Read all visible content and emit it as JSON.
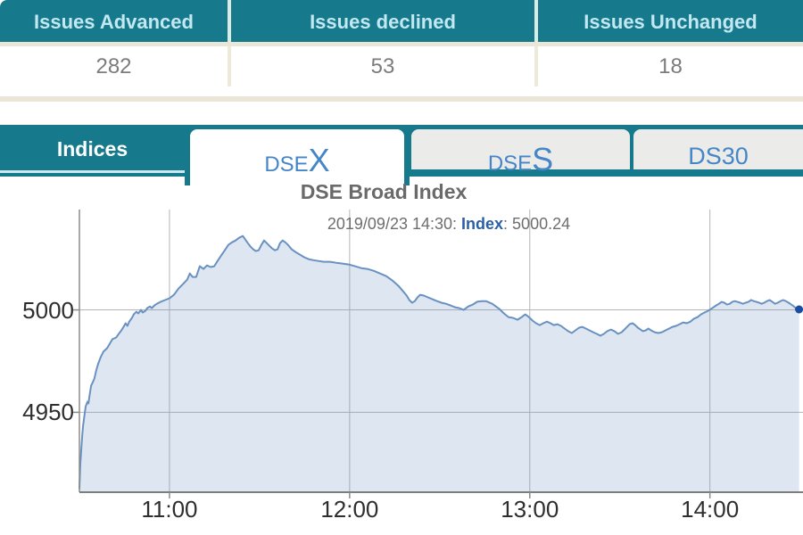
{
  "issues_table": {
    "columns": [
      {
        "label": "Issues Advanced",
        "value": "282"
      },
      {
        "label": "Issues declined",
        "value": "53"
      },
      {
        "label": "Issues Unchanged",
        "value": "18"
      }
    ]
  },
  "tabs": {
    "panel_label": "Indices",
    "items": [
      {
        "prefix": "DSE",
        "suffix": "X",
        "active": true
      },
      {
        "prefix": "DSE",
        "suffix": "S",
        "active": false
      },
      {
        "prefix": "DS30",
        "suffix": "",
        "active": false
      }
    ]
  },
  "colors": {
    "teal": "#17798c",
    "header_text": "#c2e8f2",
    "tab_text": "#4586c8",
    "line": "#6991c1",
    "fill": "rgba(105,145,193,0.22)",
    "dot": "#1b4da0",
    "grid": "#b5b5b5",
    "axis": "#8c8c8c"
  },
  "chart_data": {
    "type": "area",
    "title": "DSE Broad Index",
    "subtitle_prefix": "2019/09/23 14:30: ",
    "subtitle_label": "Index",
    "subtitle_sep": ": ",
    "subtitle_value": "5000.24",
    "x_origin_time": "10:30",
    "x_unit": "minutes since 10:30",
    "xlim": [
      0,
      241
    ],
    "ylim": [
      4911,
      5049
    ],
    "grid": true,
    "x_ticks": [
      {
        "label": "11:00",
        "t": 30
      },
      {
        "label": "12:00",
        "t": 90
      },
      {
        "label": "13:00",
        "t": 150
      },
      {
        "label": "14:00",
        "t": 210
      }
    ],
    "y_ticks": [
      {
        "label": "5000",
        "v": 5000
      },
      {
        "label": "4950",
        "v": 4950
      }
    ],
    "series": [
      {
        "name": "DSEX index",
        "points": [
          [
            0,
            4912.6
          ],
          [
            0.3,
            4924.8
          ],
          [
            0.6,
            4931.3
          ],
          [
            0.9,
            4937.8
          ],
          [
            1.2,
            4943.0
          ],
          [
            1.8,
            4950.0
          ],
          [
            2.1,
            4953.0
          ],
          [
            2.7,
            4955.2
          ],
          [
            3.0,
            4954.3
          ],
          [
            3.3,
            4957.4
          ],
          [
            3.9,
            4963.0
          ],
          [
            4.5,
            4964.8
          ],
          [
            5.0,
            4966.5
          ],
          [
            5.6,
            4970.4
          ],
          [
            6.2,
            4973.5
          ],
          [
            7.1,
            4977.0
          ],
          [
            8.0,
            4979.6
          ],
          [
            9.2,
            4981.3
          ],
          [
            10.1,
            4983.5
          ],
          [
            11.0,
            4985.7
          ],
          [
            12.2,
            4986.5
          ],
          [
            13.1,
            4988.3
          ],
          [
            14.0,
            4990.0
          ],
          [
            14.9,
            4992.2
          ],
          [
            15.4,
            4993.5
          ],
          [
            16.0,
            4992.2
          ],
          [
            16.6,
            4994.3
          ],
          [
            17.5,
            4996.1
          ],
          [
            18.1,
            4997.8
          ],
          [
            19.0,
            4999.1
          ],
          [
            19.6,
            4998.3
          ],
          [
            20.5,
            5000.0
          ],
          [
            21.1,
            4998.7
          ],
          [
            22.0,
            4999.6
          ],
          [
            22.6,
            5000.9
          ],
          [
            23.5,
            5001.7
          ],
          [
            24.1,
            5000.9
          ],
          [
            25.0,
            5002.2
          ],
          [
            25.8,
            5003.0
          ],
          [
            27.0,
            5003.9
          ],
          [
            28.5,
            5004.8
          ],
          [
            30.0,
            5005.7
          ],
          [
            31.5,
            5007.4
          ],
          [
            33.0,
            5010.4
          ],
          [
            34.5,
            5012.6
          ],
          [
            35.9,
            5014.8
          ],
          [
            36.8,
            5017.8
          ],
          [
            37.7,
            5016.1
          ],
          [
            38.9,
            5016.1
          ],
          [
            40.1,
            5021.3
          ],
          [
            41.3,
            5020.0
          ],
          [
            42.5,
            5021.7
          ],
          [
            43.7,
            5020.9
          ],
          [
            44.9,
            5021.3
          ],
          [
            46.0,
            5023.9
          ],
          [
            47.2,
            5026.5
          ],
          [
            48.4,
            5029.1
          ],
          [
            49.6,
            5031.7
          ],
          [
            50.8,
            5033.0
          ],
          [
            52.0,
            5033.9
          ],
          [
            53.2,
            5035.2
          ],
          [
            54.4,
            5036.1
          ],
          [
            55.3,
            5034.3
          ],
          [
            56.1,
            5032.6
          ],
          [
            57.0,
            5030.9
          ],
          [
            57.9,
            5029.6
          ],
          [
            58.8,
            5028.7
          ],
          [
            59.7,
            5029.1
          ],
          [
            60.6,
            5031.7
          ],
          [
            61.5,
            5033.9
          ],
          [
            62.4,
            5032.6
          ],
          [
            63.3,
            5031.3
          ],
          [
            64.2,
            5030.0
          ],
          [
            65.1,
            5029.1
          ],
          [
            66.0,
            5029.6
          ],
          [
            66.8,
            5032.6
          ],
          [
            67.7,
            5033.9
          ],
          [
            68.6,
            5033.0
          ],
          [
            69.5,
            5031.7
          ],
          [
            70.7,
            5029.6
          ],
          [
            71.9,
            5028.3
          ],
          [
            73.4,
            5027.0
          ],
          [
            74.9,
            5025.7
          ],
          [
            76.3,
            5024.8
          ],
          [
            77.8,
            5024.3
          ],
          [
            79.6,
            5023.9
          ],
          [
            81.4,
            5023.5
          ],
          [
            83.5,
            5023.5
          ],
          [
            85.5,
            5023.0
          ],
          [
            87.6,
            5022.6
          ],
          [
            89.7,
            5022.2
          ],
          [
            91.8,
            5021.3
          ],
          [
            93.9,
            5020.4
          ],
          [
            95.9,
            5020.0
          ],
          [
            98.0,
            5019.1
          ],
          [
            100.1,
            5017.8
          ],
          [
            102.2,
            5016.5
          ],
          [
            104.3,
            5014.3
          ],
          [
            106.3,
            5011.7
          ],
          [
            107.8,
            5009.1
          ],
          [
            109.0,
            5007.0
          ],
          [
            109.9,
            5004.8
          ],
          [
            110.8,
            5003.5
          ],
          [
            111.7,
            5004.3
          ],
          [
            112.6,
            5006.1
          ],
          [
            113.5,
            5007.4
          ],
          [
            114.7,
            5007.0
          ],
          [
            116.1,
            5006.1
          ],
          [
            117.6,
            5005.2
          ],
          [
            119.1,
            5004.3
          ],
          [
            120.6,
            5003.5
          ],
          [
            122.1,
            5003.0
          ],
          [
            123.6,
            5002.2
          ],
          [
            125.1,
            5001.3
          ],
          [
            126.5,
            5000.9
          ],
          [
            128.0,
            5000.0
          ],
          [
            129.5,
            5001.7
          ],
          [
            131.0,
            5002.6
          ],
          [
            132.5,
            5004.0
          ],
          [
            134.0,
            5004.3
          ],
          [
            135.4,
            5004.3
          ],
          [
            137.5,
            5003.0
          ],
          [
            139.9,
            5000.4
          ],
          [
            141.4,
            4998.3
          ],
          [
            142.9,
            4996.5
          ],
          [
            144.4,
            4996.1
          ],
          [
            145.9,
            4995.2
          ],
          [
            147.3,
            4996.5
          ],
          [
            148.5,
            4997.8
          ],
          [
            149.7,
            4996.5
          ],
          [
            150.9,
            4994.8
          ],
          [
            152.1,
            4993.5
          ],
          [
            153.3,
            4992.6
          ],
          [
            154.5,
            4993.5
          ],
          [
            155.7,
            4994.3
          ],
          [
            156.9,
            4993.5
          ],
          [
            158.0,
            4992.6
          ],
          [
            159.2,
            4993.0
          ],
          [
            160.4,
            4992.2
          ],
          [
            161.6,
            4990.9
          ],
          [
            162.8,
            4989.6
          ],
          [
            164.0,
            4988.7
          ],
          [
            165.2,
            4990.0
          ],
          [
            166.4,
            4991.3
          ],
          [
            167.5,
            4991.7
          ],
          [
            168.7,
            4990.9
          ],
          [
            169.9,
            4990.0
          ],
          [
            171.1,
            4989.1
          ],
          [
            172.3,
            4988.3
          ],
          [
            173.5,
            4987.4
          ],
          [
            174.7,
            4988.3
          ],
          [
            175.8,
            4989.6
          ],
          [
            177.0,
            4990.4
          ],
          [
            178.2,
            4989.6
          ],
          [
            179.4,
            4988.3
          ],
          [
            180.6,
            4989.1
          ],
          [
            181.5,
            4990.4
          ],
          [
            182.4,
            4991.7
          ],
          [
            183.3,
            4993.0
          ],
          [
            184.2,
            4993.5
          ],
          [
            185.1,
            4992.6
          ],
          [
            186.0,
            4991.3
          ],
          [
            186.9,
            4990.4
          ],
          [
            187.7,
            4989.6
          ],
          [
            188.6,
            4990.0
          ],
          [
            189.5,
            4990.9
          ],
          [
            190.4,
            4990.0
          ],
          [
            191.6,
            4989.1
          ],
          [
            192.8,
            4988.7
          ],
          [
            194.0,
            4989.1
          ],
          [
            195.2,
            4990.0
          ],
          [
            196.4,
            4990.9
          ],
          [
            197.5,
            4991.7
          ],
          [
            198.7,
            4992.2
          ],
          [
            199.9,
            4993.0
          ],
          [
            201.1,
            4993.9
          ],
          [
            202.3,
            4993.5
          ],
          [
            203.5,
            4994.3
          ],
          [
            204.7,
            4995.7
          ],
          [
            205.9,
            4996.5
          ],
          [
            207.0,
            4997.8
          ],
          [
            208.2,
            4998.7
          ],
          [
            209.4,
            4999.6
          ],
          [
            210.3,
            5000.4
          ],
          [
            211.2,
            5001.3
          ],
          [
            212.1,
            5002.2
          ],
          [
            213.0,
            5003.0
          ],
          [
            213.9,
            5003.9
          ],
          [
            214.8,
            5003.5
          ],
          [
            215.7,
            5002.6
          ],
          [
            216.6,
            5003.0
          ],
          [
            217.4,
            5003.9
          ],
          [
            218.3,
            5004.3
          ],
          [
            219.2,
            5003.9
          ],
          [
            220.1,
            5003.5
          ],
          [
            221.0,
            5003.0
          ],
          [
            221.9,
            5003.5
          ],
          [
            222.8,
            5003.9
          ],
          [
            223.7,
            5004.8
          ],
          [
            224.6,
            5004.3
          ],
          [
            225.5,
            5003.9
          ],
          [
            226.4,
            5003.5
          ],
          [
            227.2,
            5003.0
          ],
          [
            228.1,
            5003.5
          ],
          [
            229.0,
            5004.3
          ],
          [
            229.9,
            5004.8
          ],
          [
            230.8,
            5003.9
          ],
          [
            231.7,
            5003.0
          ],
          [
            232.6,
            5003.5
          ],
          [
            233.5,
            5004.3
          ],
          [
            234.4,
            5004.8
          ],
          [
            235.3,
            5004.3
          ],
          [
            236.2,
            5003.5
          ],
          [
            237.1,
            5002.6
          ],
          [
            238.0,
            5001.7
          ],
          [
            238.9,
            5000.4
          ],
          [
            239.7,
            5000.24
          ]
        ]
      }
    ],
    "last_point_marker": true
  }
}
